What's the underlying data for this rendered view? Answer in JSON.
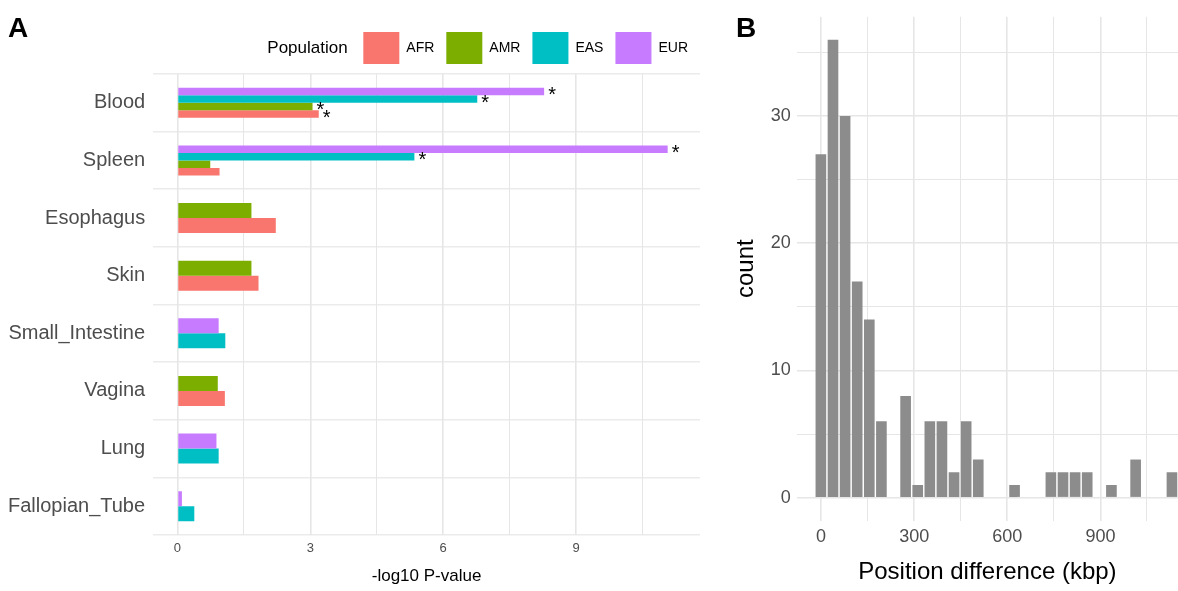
{
  "chart_data": [
    {
      "type": "bar",
      "orientation": "horizontal",
      "title": "A",
      "xlabel": "-log10 P-value",
      "legend": "top",
      "legend_title": "Population",
      "grid": true,
      "categories": [
        "Blood",
        "Spleen",
        "Esophagus",
        "Skin",
        "Small_Intestine",
        "Vagina",
        "Lung",
        "Fallopian_Tube"
      ],
      "series": [
        {
          "name": "AFR",
          "color": "#f8766d",
          "values": [
            3.19,
            0.95,
            2.22,
            1.83,
            null,
            1.07,
            null,
            null
          ],
          "value_labels": [
            "*",
            null,
            null,
            null,
            null,
            null,
            null,
            null
          ]
        },
        {
          "name": "AMR",
          "color": "#7cae00",
          "values": [
            3.05,
            0.74,
            1.67,
            1.67,
            null,
            0.91,
            null,
            null
          ],
          "value_labels": [
            "*",
            null,
            null,
            null,
            null,
            null,
            null,
            null
          ]
        },
        {
          "name": "EAS",
          "color": "#00bfc4",
          "values": [
            6.77,
            5.35,
            null,
            null,
            1.08,
            null,
            0.93,
            0.38
          ],
          "value_labels": [
            "*",
            "*",
            null,
            null,
            null,
            null,
            null,
            null
          ]
        },
        {
          "name": "EUR",
          "color": "#c77cff",
          "values": [
            8.28,
            11.07,
            null,
            null,
            0.93,
            null,
            0.88,
            0.1
          ],
          "value_labels": [
            "*",
            "*",
            null,
            null,
            null,
            null,
            null,
            null
          ]
        }
      ],
      "xlim": [
        -0.55,
        11.8
      ],
      "xticks": [
        0,
        {
          "value": 1.5,
          "label": null
        },
        3,
        {
          "value": 4.5,
          "label": null
        },
        6,
        {
          "value": 7.5,
          "label": null
        },
        9,
        {
          "value": 10.5,
          "label": null
        }
      ]
    },
    {
      "type": "histogram",
      "title": "B",
      "xlabel": "Position difference (kbp)",
      "ylabel": "count",
      "grid": true,
      "color": "#8c8c8c",
      "bins": [
        -20,
        19,
        58,
        97,
        136,
        175,
        214,
        253,
        292,
        331,
        370,
        409,
        448,
        487,
        526,
        565,
        604,
        643,
        682,
        721,
        760,
        799,
        838,
        877,
        916,
        955,
        994,
        1033,
        1072,
        1111,
        1150
      ],
      "values": [
        27,
        36,
        30,
        17,
        14,
        6,
        0,
        8,
        1,
        6,
        6,
        2,
        6,
        3,
        0,
        0,
        1,
        0,
        0,
        2,
        2,
        2,
        2,
        0,
        1,
        0,
        3,
        0,
        0,
        2
      ],
      "xlim": [
        -78,
        1150
      ],
      "ylim": [
        -1.8,
        37.8
      ],
      "xticks": [
        0,
        {
          "value": 150,
          "label": null
        },
        300,
        {
          "value": 450,
          "label": null
        },
        600,
        {
          "value": 750,
          "label": null
        },
        900,
        {
          "value": 1050,
          "label": null
        }
      ],
      "yticks": [
        0,
        {
          "value": 5,
          "label": null
        },
        10,
        {
          "value": 15,
          "label": null
        },
        20,
        {
          "value": 25,
          "label": null
        },
        30,
        {
          "value": 35,
          "label": null
        }
      ]
    }
  ]
}
